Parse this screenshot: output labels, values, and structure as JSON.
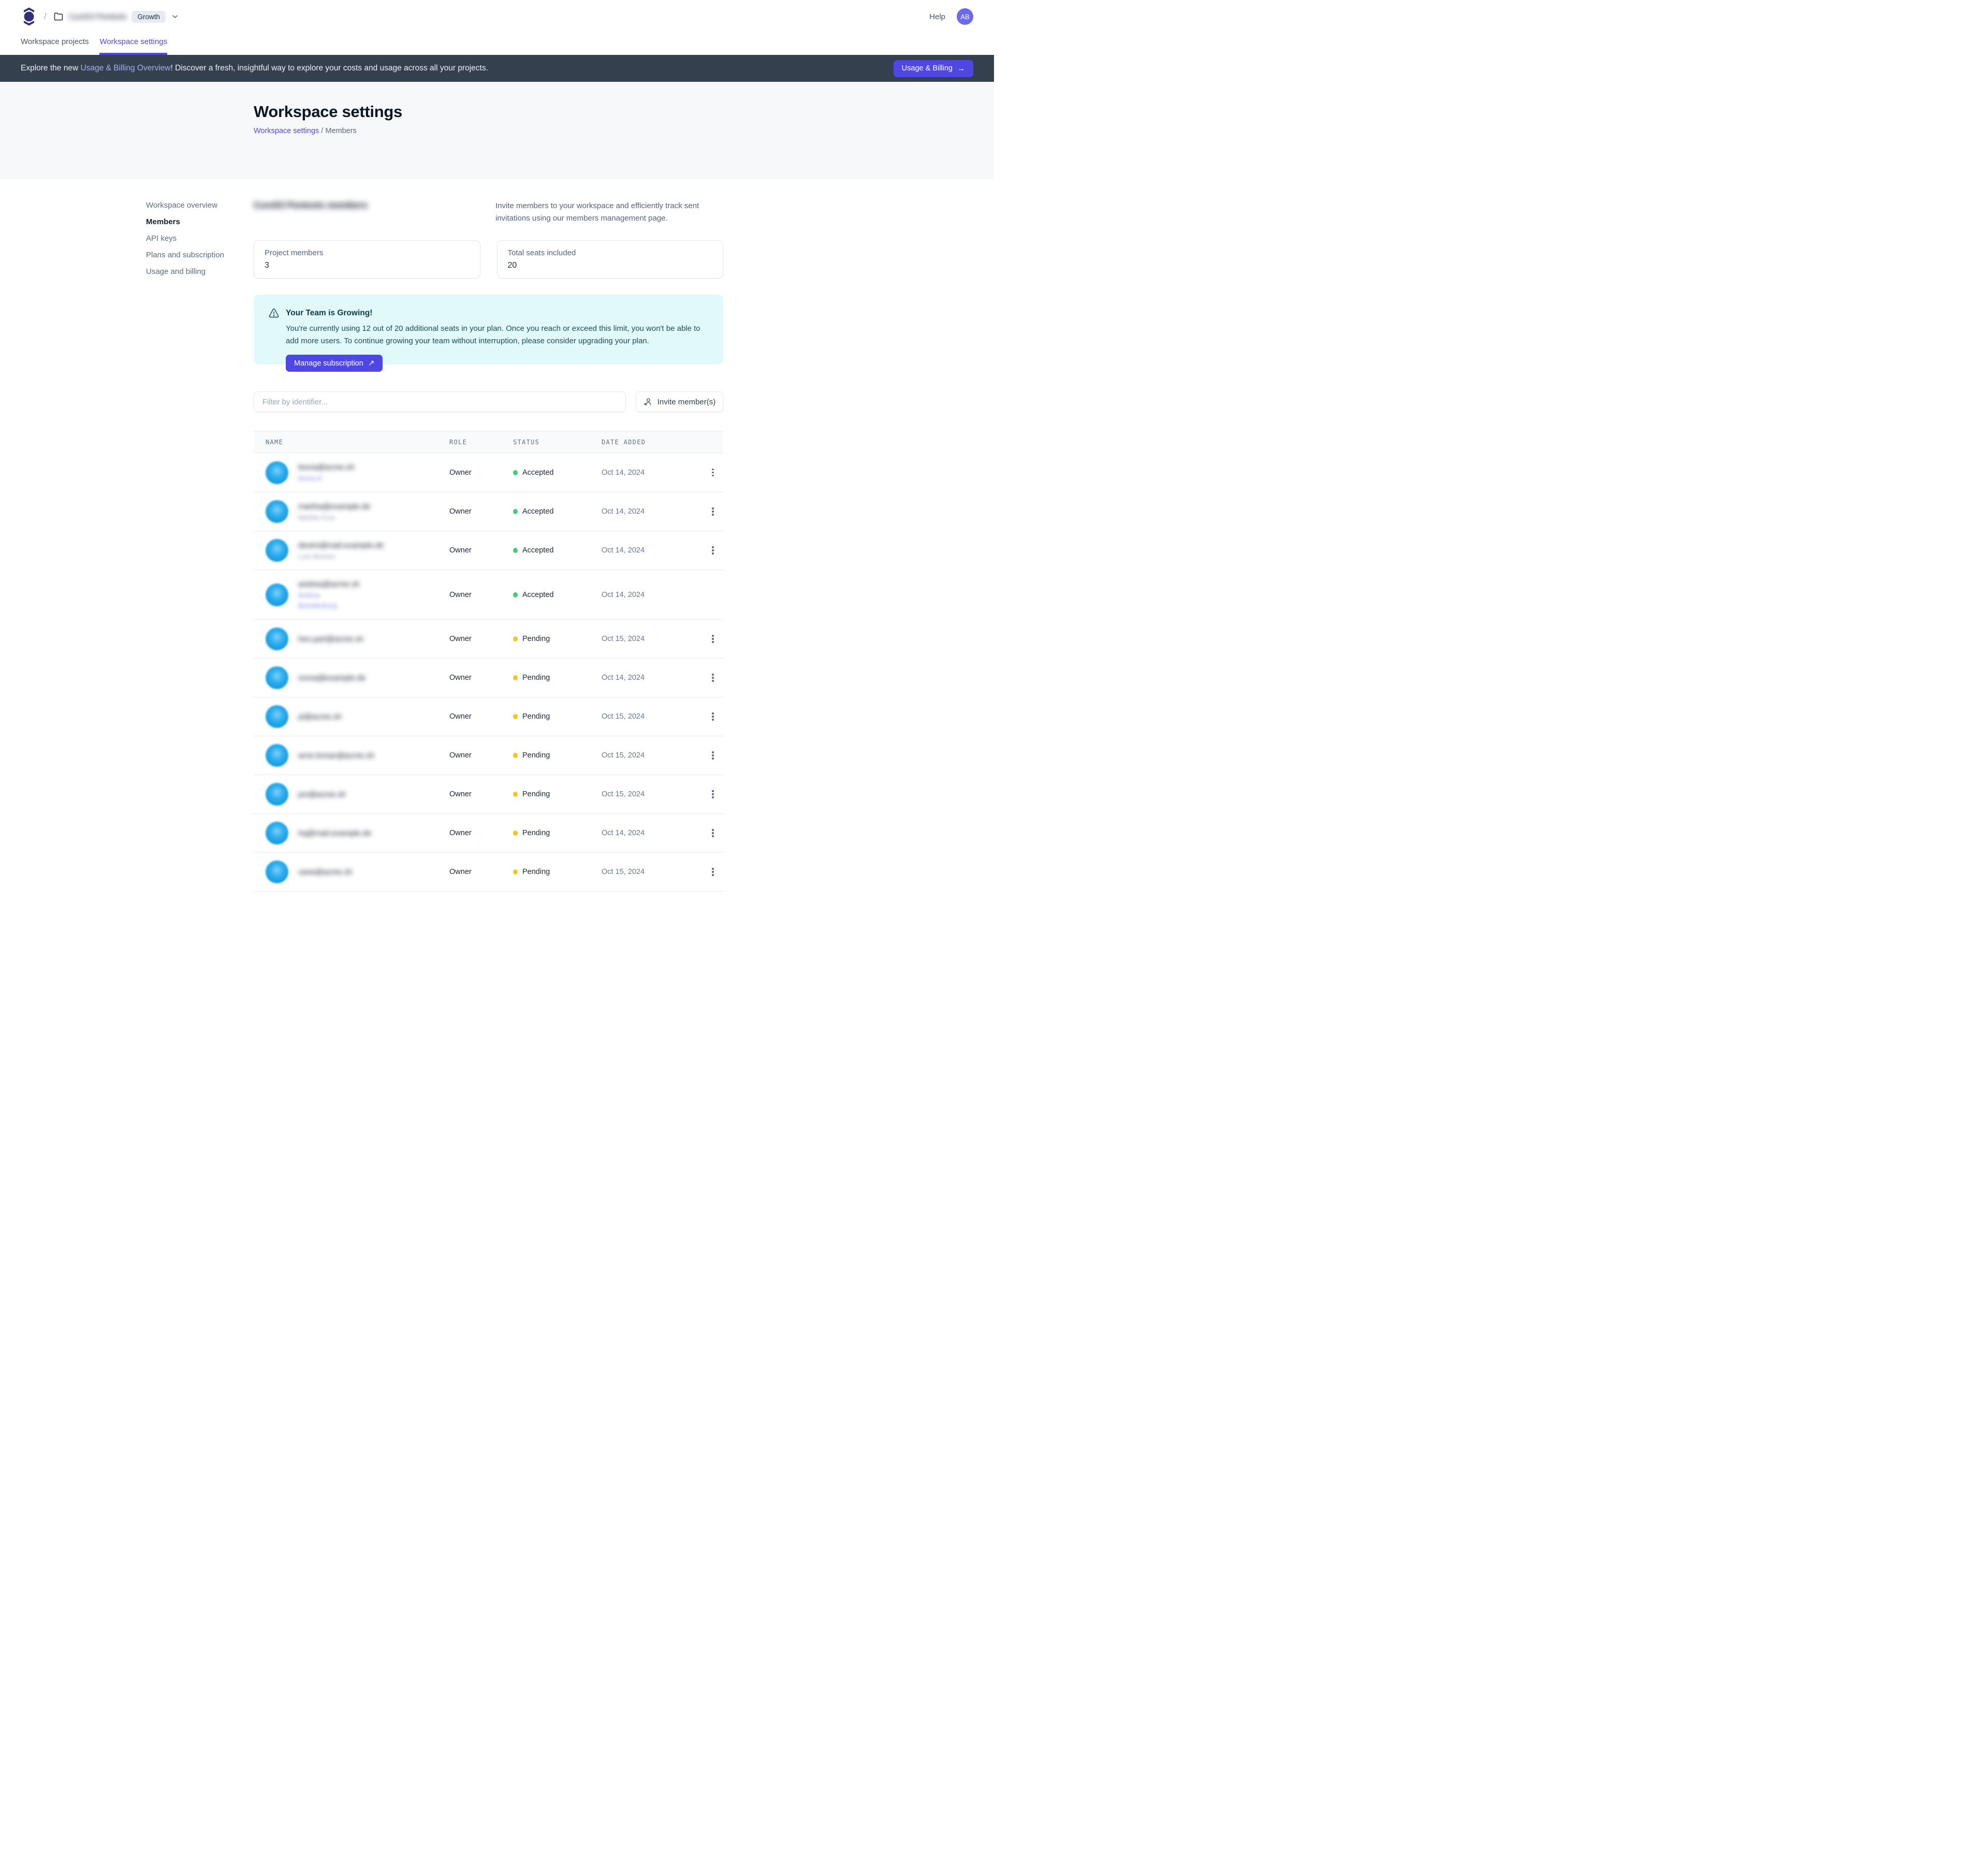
{
  "topbar": {
    "slash": "/",
    "workspace_name_blurred": "Cure53 Pentests",
    "plan_badge": "Growth",
    "help_label": "Help",
    "avatar_initials": "AB"
  },
  "tabs": {
    "projects": "Workspace projects",
    "settings": "Workspace settings"
  },
  "banner": {
    "text_before": "Explore the new ",
    "link_text": "Usage & Billing Overview",
    "text_after": "! Discover a fresh, insightful way to explore your costs and usage across all your projects.",
    "button_label": "Usage & Billing",
    "button_icon": "→"
  },
  "hero": {
    "title": "Workspace settings",
    "breadcrumb_link": "Workspace settings",
    "breadcrumb_separator": " / ",
    "breadcrumb_current": "Members"
  },
  "sidebar": {
    "items": [
      {
        "label": "Workspace overview",
        "active": false
      },
      {
        "label": "Members",
        "active": true
      },
      {
        "label": "API keys",
        "active": false
      },
      {
        "label": "Plans and subscription",
        "active": false
      },
      {
        "label": "Usage and billing",
        "active": false
      }
    ]
  },
  "members_section": {
    "heading_blurred": "Cure53 Pentests members",
    "description": "Invite members to your workspace and efficiently track sent invitations using our members management page.",
    "stats": [
      {
        "label": "Project members",
        "value": "3"
      },
      {
        "label": "Total seats included",
        "value": "20"
      }
    ]
  },
  "alert": {
    "title": "Your Team is Growing!",
    "body": "You're currently using 12 out of 20 additional seats in your plan. Once you reach or exceed this limit, you won't be able to add more users. To continue growing your team without interruption, please consider upgrading your plan.",
    "button_label": "Manage subscription",
    "button_icon": "↗"
  },
  "toolbar": {
    "filter_placeholder": "Filter by identifier...",
    "invite_label": "Invite member(s)"
  },
  "table": {
    "columns": [
      "NAME",
      "ROLE",
      "STATUS",
      "DATE ADDED"
    ],
    "rows": [
      {
        "email_blurred": "leona@acme.sh",
        "secondary_blurred": [
          "leona.m"
        ],
        "secondary_style": "link",
        "role": "Owner",
        "status": "Accepted",
        "date_added": "Oct 14, 2024",
        "has_menu": true,
        "tall": false
      },
      {
        "email_blurred": "martha@example.de",
        "secondary_blurred": [
          "Martha Cruz"
        ],
        "secondary_style": "muted",
        "role": "Owner",
        "status": "Accepted",
        "date_added": "Oct 14, 2024",
        "has_menu": true,
        "tall": false
      },
      {
        "email_blurred": "devtm@mail.example.de",
        "secondary_blurred": [
          "Luis Moreno"
        ],
        "secondary_style": "muted",
        "role": "Owner",
        "status": "Accepted",
        "date_added": "Oct 14, 2024",
        "has_menu": true,
        "tall": false
      },
      {
        "email_blurred": "andrea@acme.sh",
        "secondary_blurred": [
          "Andrea",
          "Brandenburg"
        ],
        "secondary_style": "link",
        "role": "Owner",
        "status": "Accepted",
        "date_added": "Oct 14, 2024",
        "has_menu": false,
        "tall": true
      },
      {
        "email_blurred": "hen.parl@acme.sh",
        "secondary_blurred": [],
        "secondary_style": "muted",
        "role": "Owner",
        "status": "Pending",
        "date_added": "Oct 15, 2024",
        "has_menu": true,
        "tall": false
      },
      {
        "email_blurred": "mona@example.de",
        "secondary_blurred": [],
        "secondary_style": "muted",
        "role": "Owner",
        "status": "Pending",
        "date_added": "Oct 14, 2024",
        "has_menu": true,
        "tall": false
      },
      {
        "email_blurred": "pi@acme.sh",
        "secondary_blurred": [],
        "secondary_style": "muted",
        "role": "Owner",
        "status": "Pending",
        "date_added": "Oct 15, 2024",
        "has_menu": true,
        "tall": false
      },
      {
        "email_blurred": "arne.loman@acme.sh",
        "secondary_blurred": [],
        "secondary_style": "muted",
        "role": "Owner",
        "status": "Pending",
        "date_added": "Oct 15, 2024",
        "has_menu": true,
        "tall": false
      },
      {
        "email_blurred": "jon@acme.sh",
        "secondary_blurred": [],
        "secondary_style": "muted",
        "role": "Owner",
        "status": "Pending",
        "date_added": "Oct 15, 2024",
        "has_menu": true,
        "tall": false
      },
      {
        "email_blurred": "hq@mail.example.de",
        "secondary_blurred": [],
        "secondary_style": "muted",
        "role": "Owner",
        "status": "Pending",
        "date_added": "Oct 14, 2024",
        "has_menu": true,
        "tall": false
      },
      {
        "email_blurred": "vane@acme.sh",
        "secondary_blurred": [],
        "secondary_style": "muted",
        "role": "Owner",
        "status": "Pending",
        "date_added": "Oct 15, 2024",
        "has_menu": true,
        "tall": false
      }
    ]
  },
  "colors": {
    "accent": "#4f46e5",
    "banner_bg": "#35404e",
    "alert_bg": "#e1f9f8",
    "accepted_dot": "#3ed06e",
    "pending_dot": "#ffc417",
    "member_avatar_blue": "#1ba2e9",
    "user_avatar_bg": "#6a6bea"
  }
}
